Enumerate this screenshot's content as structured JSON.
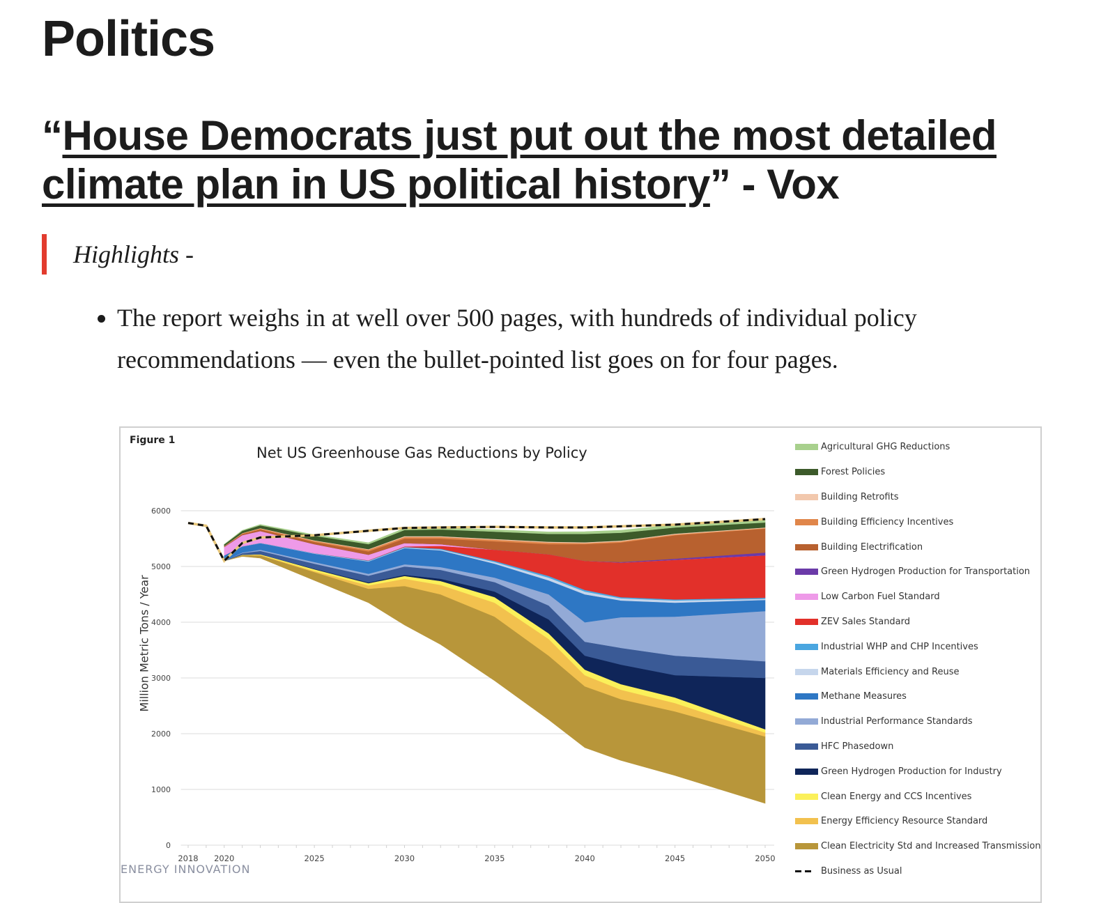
{
  "page": {
    "section_title": "Politics",
    "headline": {
      "open_quote": "“",
      "link_text": "House Democrats just put out the most detailed climate plan in US political history",
      "close_quote": "”",
      "source": " - Vox"
    },
    "blockquote": "Highlights -",
    "bullets": [
      "The report weighs in at well over 500 pages, with hundreds of individual policy recommendations — even the bullet-pointed list goes on for four pages."
    ],
    "colors": {
      "accent_bar": "#e23b2e",
      "text": "#1c1c1c"
    }
  },
  "figure": {
    "label": "Figure 1",
    "watermark": "ENERGY INNOVATION"
  },
  "chart_data": {
    "type": "area",
    "stacked": true,
    "title": "Net US Greenhouse Gas Reductions by Policy",
    "xlabel": "",
    "ylabel": "Million Metric Tons / Year",
    "ylim": [
      0,
      6000
    ],
    "yticks": [
      0,
      1000,
      2000,
      3000,
      4000,
      5000,
      6000
    ],
    "xticks": [
      "2018",
      "2020",
      "2025",
      "2030",
      "2035",
      "2040",
      "2045",
      "2050"
    ],
    "grid": true,
    "legend_position": "right",
    "x": [
      2020,
      2021,
      2022,
      2025,
      2028,
      2030,
      2032,
      2035,
      2038,
      2040,
      2042,
      2045,
      2050
    ],
    "baseline_net_emissions": [
      5100,
      5180,
      5150,
      4750,
      4350,
      3950,
      3600,
      2950,
      2250,
      1750,
      1520,
      1250,
      750
    ],
    "series": [
      {
        "name": "Clean Electricity Std and Increased Transmission",
        "color": "#b8963a",
        "values": [
          0,
          20,
          50,
          150,
          250,
          700,
          900,
          1150,
          1150,
          1100,
          1100,
          1150,
          1200
        ]
      },
      {
        "name": "Energy Efficiency Resource Standard",
        "color": "#f2c14e",
        "values": [
          0,
          5,
          10,
          20,
          60,
          130,
          170,
          250,
          300,
          200,
          170,
          150,
          70
        ]
      },
      {
        "name": "Clean Energy and CCS Incentives",
        "color": "#fbf05a",
        "values": [
          0,
          5,
          10,
          30,
          40,
          50,
          70,
          100,
          100,
          100,
          100,
          100,
          60
        ]
      },
      {
        "name": "Green Hydrogen Production for Industry",
        "color": "#0f2559",
        "values": [
          0,
          0,
          0,
          10,
          15,
          20,
          40,
          100,
          250,
          250,
          350,
          400,
          920
        ]
      },
      {
        "name": "HFC Phasedown",
        "color": "#3a5a96",
        "values": [
          0,
          30,
          60,
          90,
          120,
          150,
          160,
          170,
          250,
          250,
          300,
          350,
          300
        ]
      },
      {
        "name": "Industrial Performance Standards",
        "color": "#93aad6",
        "values": [
          0,
          10,
          20,
          30,
          35,
          40,
          50,
          80,
          200,
          350,
          550,
          700,
          900
        ]
      },
      {
        "name": "Methane Measures",
        "color": "#2e77c4",
        "values": [
          100,
          110,
          120,
          150,
          220,
          290,
          300,
          250,
          250,
          500,
          300,
          250,
          200
        ]
      },
      {
        "name": "Materials Efficiency and Reuse",
        "color": "#c6d6ec",
        "values": [
          0,
          2,
          3,
          5,
          8,
          10,
          15,
          30,
          50,
          50,
          40,
          40,
          20
        ]
      },
      {
        "name": "Industrial WHP and CHP Incentives",
        "color": "#4aa6e0",
        "values": [
          0,
          2,
          3,
          5,
          8,
          10,
          15,
          20,
          30,
          30,
          20,
          20,
          20
        ]
      },
      {
        "name": "ZEV Sales Standard",
        "color": "#e2302a",
        "values": [
          0,
          0,
          0,
          0,
          5,
          10,
          50,
          200,
          390,
          520,
          620,
          710,
          760
        ]
      },
      {
        "name": "Low Carbon Fuel Standard",
        "color": "#ee9ae8",
        "values": [
          150,
          200,
          210,
          160,
          100,
          60,
          30,
          0,
          0,
          0,
          0,
          0,
          0
        ]
      },
      {
        "name": "Green Hydrogen Production for Transportation",
        "color": "#6b3aa8",
        "values": [
          0,
          0,
          0,
          0,
          0,
          0,
          0,
          0,
          0,
          0,
          10,
          20,
          50
        ]
      },
      {
        "name": "Building Electrification",
        "color": "#b8612f",
        "values": [
          10,
          20,
          30,
          40,
          60,
          80,
          100,
          150,
          180,
          300,
          350,
          420,
          430
        ]
      },
      {
        "name": "Building Efficiency Incentives",
        "color": "#e0864a",
        "values": [
          5,
          10,
          15,
          20,
          30,
          30,
          30,
          30,
          30,
          20,
          20,
          15,
          10
        ]
      },
      {
        "name": "Building Retrofits",
        "color": "#f2c8ad",
        "values": [
          2,
          5,
          8,
          10,
          10,
          15,
          15,
          15,
          15,
          15,
          15,
          15,
          10
        ]
      },
      {
        "name": "Forest Policies",
        "color": "#3c5a2a",
        "values": [
          30,
          40,
          50,
          80,
          90,
          110,
          120,
          130,
          140,
          150,
          140,
          110,
          90
        ]
      },
      {
        "name": "Agricultural GHG Reductions",
        "color": "#a8d08d",
        "values": [
          0,
          10,
          15,
          20,
          25,
          30,
          30,
          35,
          35,
          40,
          45,
          50,
          60
        ]
      }
    ],
    "business_as_usual": {
      "name": "Business as Usual",
      "style": "dashed",
      "x": [
        2018,
        2019,
        2020,
        2021,
        2022,
        2025,
        2028,
        2030,
        2032,
        2035,
        2038,
        2040,
        2042,
        2045,
        2050
      ],
      "values": [
        5780,
        5730,
        5100,
        5420,
        5520,
        5560,
        5640,
        5690,
        5700,
        5710,
        5700,
        5700,
        5720,
        5750,
        5850
      ]
    },
    "legend_order": [
      "Agricultural GHG Reductions",
      "Forest Policies",
      "Building Retrofits",
      "Building Efficiency Incentives",
      "Building Electrification",
      "Green Hydrogen Production for Transportation",
      "Low Carbon Fuel Standard",
      "ZEV Sales Standard",
      "Industrial WHP and CHP Incentives",
      "Materials Efficiency and Reuse",
      "Methane Measures",
      "Industrial Performance Standards",
      "HFC Phasedown",
      "Green Hydrogen Production for Industry",
      "Clean Energy and CCS Incentives",
      "Energy Efficiency Resource Standard",
      "Clean Electricity Std and Increased Transmission",
      "Business as Usual"
    ]
  }
}
